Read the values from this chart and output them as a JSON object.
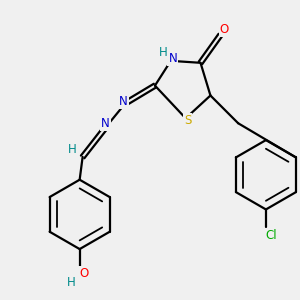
{
  "background_color": "#f0f0f0",
  "bond_color": "#000000",
  "atom_colors": {
    "O": "#ff0000",
    "N": "#0000cc",
    "S": "#ccaa00",
    "Cl": "#00aa00",
    "H": "#008b8b",
    "C": "#000000"
  },
  "lw": 1.6,
  "fs": 8.5
}
